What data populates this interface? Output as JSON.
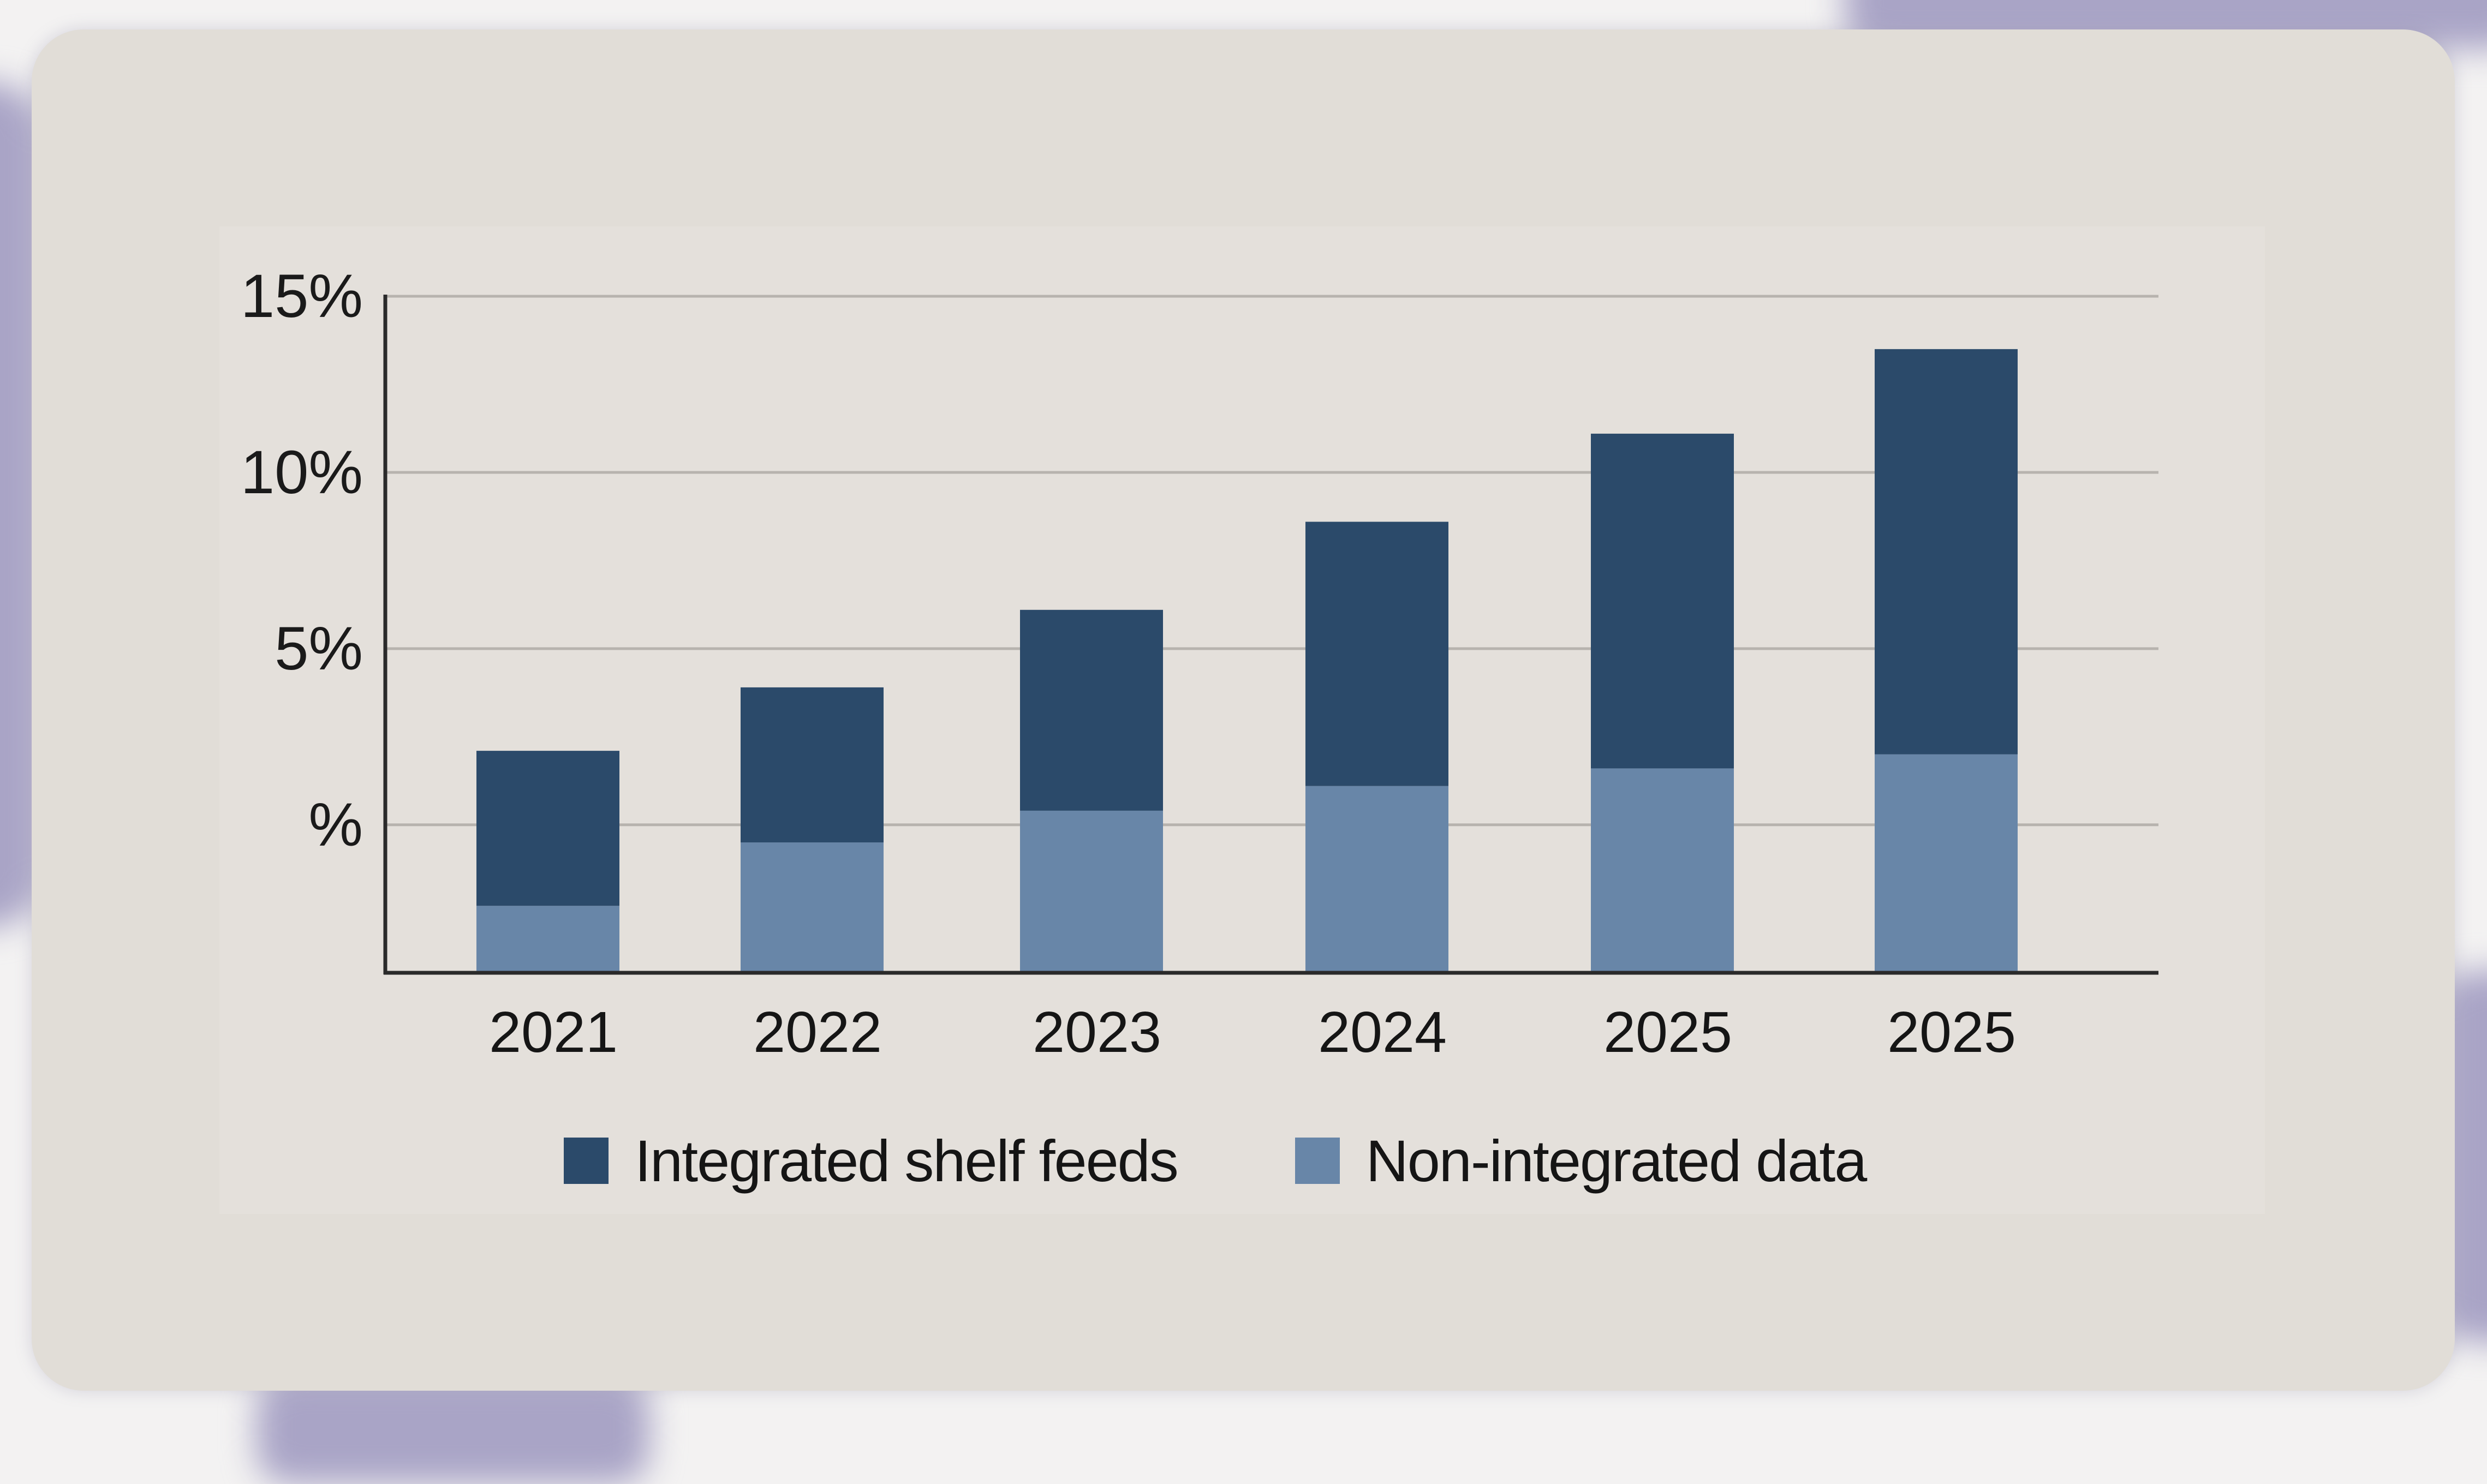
{
  "colors": {
    "integrated": "#2b4a6a",
    "non_integrated": "#6886a8",
    "gridline": "#b7b3ae",
    "axis": "#2a2a2a",
    "card_background": "#e1ddd7"
  },
  "legend": [
    {
      "label": "Integrated shelf feeds",
      "color": "#2b4a6a"
    },
    {
      "label": "Non-integrated data",
      "color": "#6886a8"
    }
  ],
  "chart_data": {
    "type": "bar",
    "stacked": true,
    "title": "",
    "xlabel": "",
    "ylabel": "",
    "categories": [
      "2021",
      "2022",
      "2023",
      "2024",
      "2025",
      "2025"
    ],
    "series": [
      {
        "name": "Non-integrated data",
        "values": [
          1.9,
          3.7,
          4.6,
          5.3,
          5.8,
          6.2
        ]
      },
      {
        "name": "Integrated shelf feeds",
        "values": [
          4.4,
          4.4,
          5.7,
          7.5,
          9.5,
          11.5
        ]
      }
    ],
    "stack_base": -4.2,
    "ylim": [
      -4.2,
      15
    ],
    "yticks": [
      {
        "value": 15,
        "label": "15%"
      },
      {
        "value": 10,
        "label": "10%"
      },
      {
        "value": 5,
        "label": "5%"
      },
      {
        "value": 0,
        "label": "%"
      }
    ],
    "grid": true,
    "legend_position": "bottom-center"
  }
}
